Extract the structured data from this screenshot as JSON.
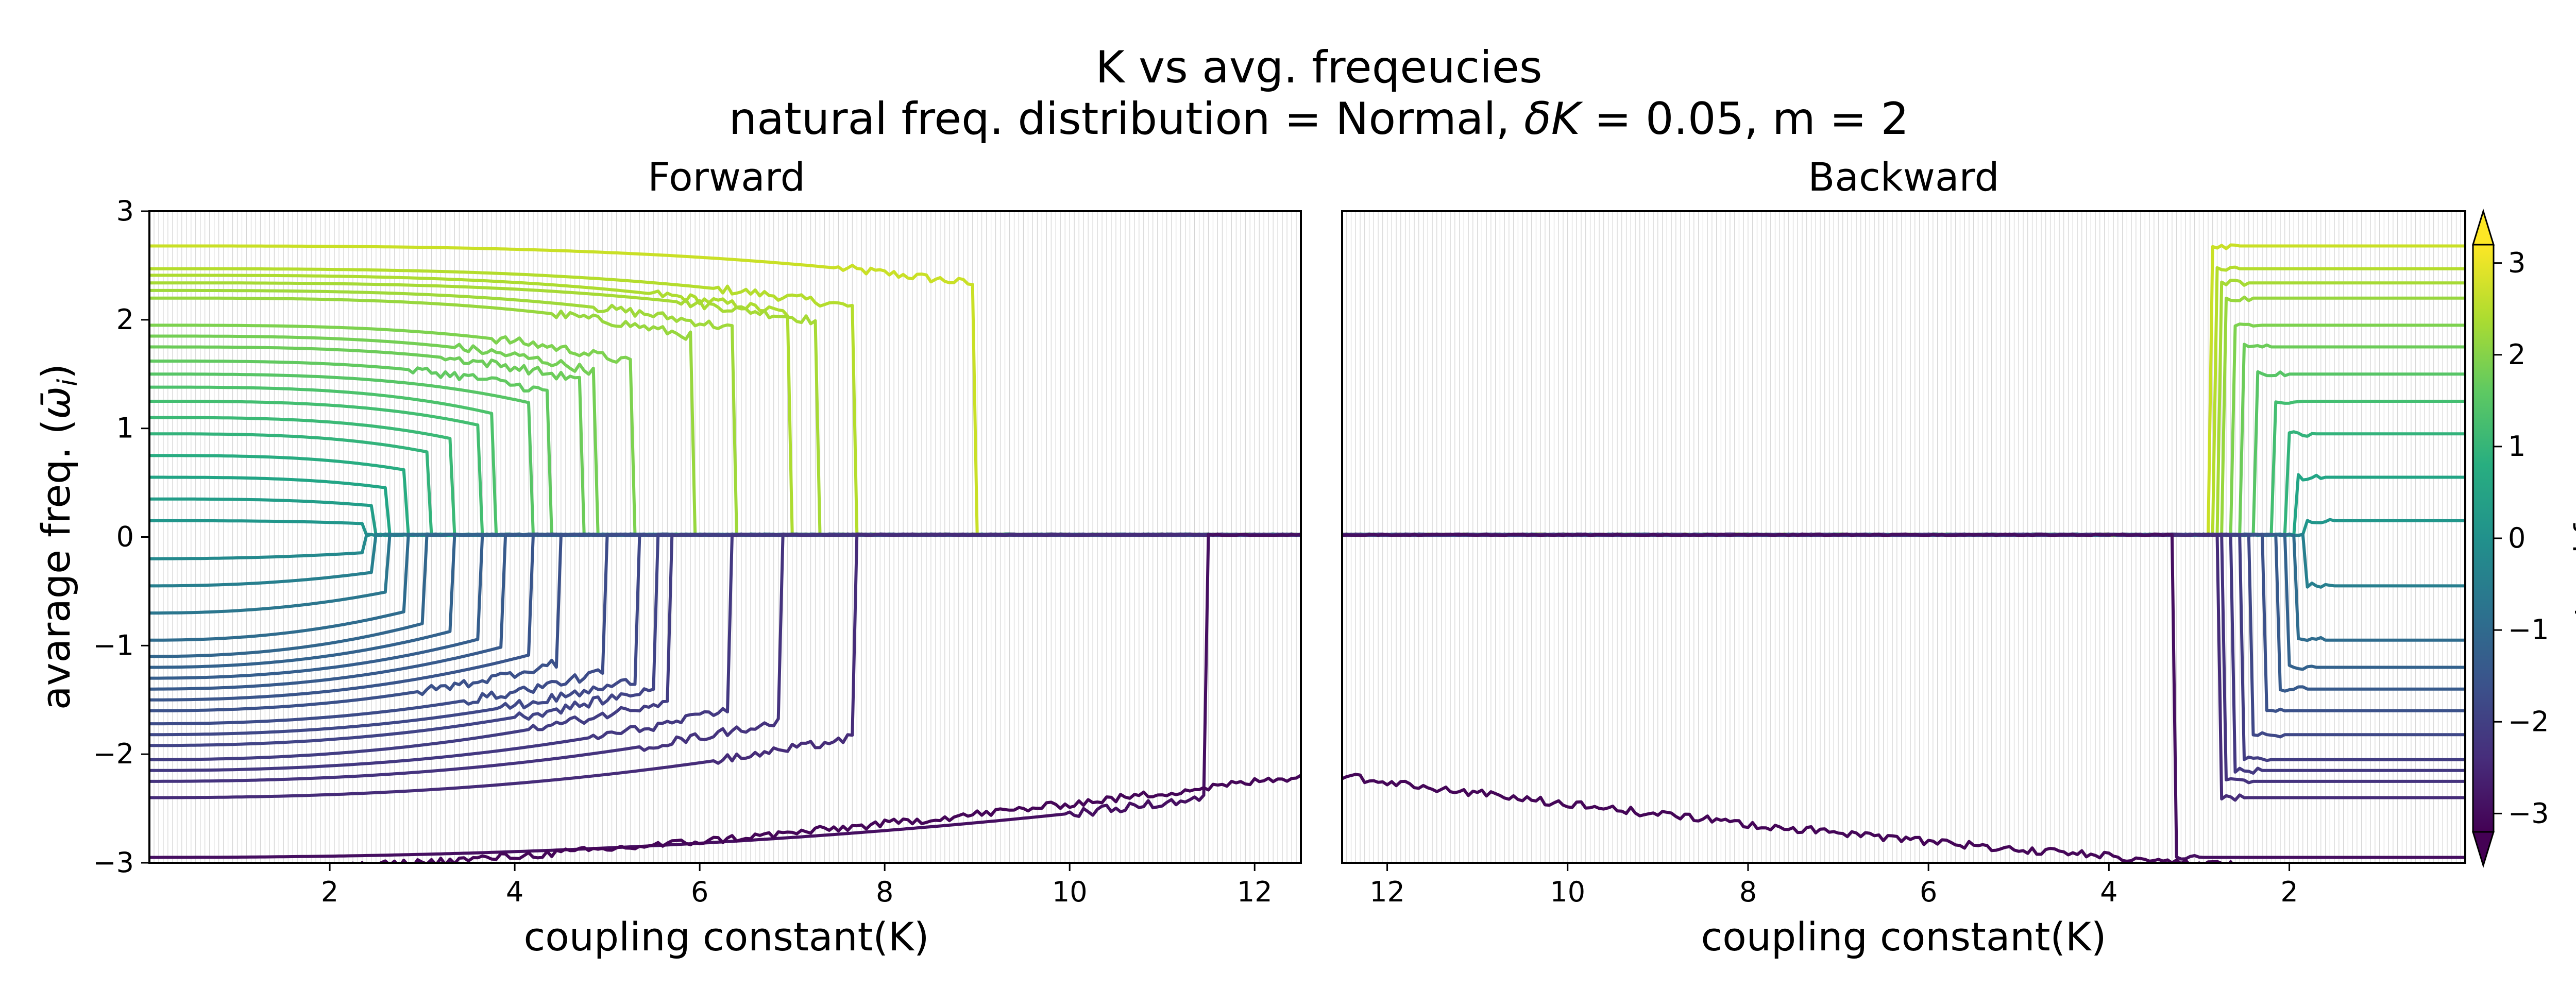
{
  "figure": {
    "title": "K vs avg. freqeucies",
    "subtitle_prefix": "natural freq. distribution = Normal, ",
    "subtitle_delta": "δ",
    "subtitle_K": "K",
    "subtitle_suffix": " = 0.05, m = 2"
  },
  "colorbar": {
    "label_text": "natural freq. ",
    "label_symbol": "ω",
    "label_sub": "i",
    "ticks": [
      "3",
      "2",
      "1",
      "0",
      "−1",
      "−2",
      "−3"
    ],
    "range": [
      -3.2,
      3.2
    ],
    "colormap": "viridis",
    "extend": "both"
  },
  "chart_data": [
    {
      "type": "line",
      "title": "Forward",
      "xlabel": "coupling constant(K)",
      "ylabel": "avarage freq. (ω̄ᵢ)",
      "ylabel_text": "avarage freq. (",
      "ylabel_symbol": "ω̄",
      "ylabel_sub": "i",
      "ylabel_close": ")",
      "xlim": [
        0.05,
        12.5
      ],
      "ylim": [
        -3,
        3
      ],
      "x_ticks": [
        2,
        4,
        6,
        8,
        10,
        12
      ],
      "x_tick_labels": [
        "2",
        "4",
        "6",
        "8",
        "10",
        "12"
      ],
      "y_ticks": [
        3,
        2,
        1,
        0,
        -1,
        -2,
        -3
      ],
      "y_tick_labels": [
        "3",
        "2",
        "1",
        "0",
        "−1",
        "−2",
        "−3"
      ],
      "grid": "vertical every δK",
      "series": [
        {
          "omega": 2.68,
          "unlock_K": 8.95
        },
        {
          "omega": 2.47,
          "unlock_K": 7.65
        },
        {
          "omega": 2.41,
          "unlock_K": 6.95
        },
        {
          "omega": 2.34,
          "unlock_K": 7.25
        },
        {
          "omega": 2.27,
          "unlock_K": 6.35
        },
        {
          "omega": 2.2,
          "unlock_K": 5.9
        },
        {
          "omega": 1.95,
          "unlock_K": 5.25
        },
        {
          "omega": 1.85,
          "unlock_K": 4.85
        },
        {
          "omega": 1.75,
          "unlock_K": 4.7
        },
        {
          "omega": 1.62,
          "unlock_K": 4.35
        },
        {
          "omega": 1.5,
          "unlock_K": 4.15
        },
        {
          "omega": 1.38,
          "unlock_K": 3.75
        },
        {
          "omega": 1.25,
          "unlock_K": 3.6
        },
        {
          "omega": 1.1,
          "unlock_K": 3.3
        },
        {
          "omega": 0.95,
          "unlock_K": 3.05
        },
        {
          "omega": 0.75,
          "unlock_K": 2.8
        },
        {
          "omega": 0.55,
          "unlock_K": 2.6
        },
        {
          "omega": 0.35,
          "unlock_K": 2.45
        },
        {
          "omega": 0.15,
          "unlock_K": 2.35
        },
        {
          "omega": -0.2,
          "unlock_K": 2.35
        },
        {
          "omega": -0.45,
          "unlock_K": 2.45
        },
        {
          "omega": -0.7,
          "unlock_K": 2.6
        },
        {
          "omega": -0.95,
          "unlock_K": 2.8
        },
        {
          "omega": -1.1,
          "unlock_K": 3.0
        },
        {
          "omega": -1.2,
          "unlock_K": 3.3
        },
        {
          "omega": -1.3,
          "unlock_K": 3.6
        },
        {
          "omega": -1.4,
          "unlock_K": 3.85
        },
        {
          "omega": -1.5,
          "unlock_K": 4.15
        },
        {
          "omega": -1.6,
          "unlock_K": 4.45
        },
        {
          "omega": -1.72,
          "unlock_K": 4.95
        },
        {
          "omega": -1.82,
          "unlock_K": 5.3
        },
        {
          "omega": -1.92,
          "unlock_K": 5.5
        },
        {
          "omega": -2.05,
          "unlock_K": 5.65
        },
        {
          "omega": -2.15,
          "unlock_K": 6.3
        },
        {
          "omega": -2.25,
          "unlock_K": 6.85
        },
        {
          "omega": -2.4,
          "unlock_K": 7.65
        },
        {
          "omega": -2.95,
          "unlock_K": 11.5
        },
        {
          "omega": -3.12,
          "unlock_K": 14.0
        }
      ]
    },
    {
      "type": "line",
      "title": "Backward",
      "xlabel": "coupling constant(K)",
      "xlim": [
        12.5,
        0.05
      ],
      "ylim": [
        -3,
        3
      ],
      "x_ticks": [
        12,
        10,
        8,
        6,
        4,
        2
      ],
      "x_tick_labels": [
        "12",
        "10",
        "8",
        "6",
        "4",
        "2"
      ],
      "grid": "vertical every δK",
      "series": [
        {
          "omega": 2.68,
          "lock_K": 2.85
        },
        {
          "omega": 2.47,
          "lock_K": 2.8
        },
        {
          "omega": 2.34,
          "lock_K": 2.75
        },
        {
          "omega": 2.2,
          "lock_K": 2.7
        },
        {
          "omega": 1.95,
          "lock_K": 2.6
        },
        {
          "omega": 1.75,
          "lock_K": 2.5
        },
        {
          "omega": 1.5,
          "lock_K": 2.35
        },
        {
          "omega": 1.25,
          "lock_K": 2.2
        },
        {
          "omega": 0.95,
          "lock_K": 2.05
        },
        {
          "omega": 0.55,
          "lock_K": 1.95
        },
        {
          "omega": 0.15,
          "lock_K": 1.85
        },
        {
          "omega": -0.45,
          "lock_K": 1.85
        },
        {
          "omega": -0.95,
          "lock_K": 1.95
        },
        {
          "omega": -1.2,
          "lock_K": 2.05
        },
        {
          "omega": -1.4,
          "lock_K": 2.15
        },
        {
          "omega": -1.6,
          "lock_K": 2.3
        },
        {
          "omega": -1.82,
          "lock_K": 2.4
        },
        {
          "omega": -2.05,
          "lock_K": 2.5
        },
        {
          "omega": -2.15,
          "lock_K": 2.6
        },
        {
          "omega": -2.25,
          "lock_K": 2.7
        },
        {
          "omega": -2.4,
          "lock_K": 2.75
        },
        {
          "omega": -2.95,
          "lock_K": 3.25
        },
        {
          "omega": -3.12,
          "lock_K": 14.0
        }
      ]
    }
  ]
}
